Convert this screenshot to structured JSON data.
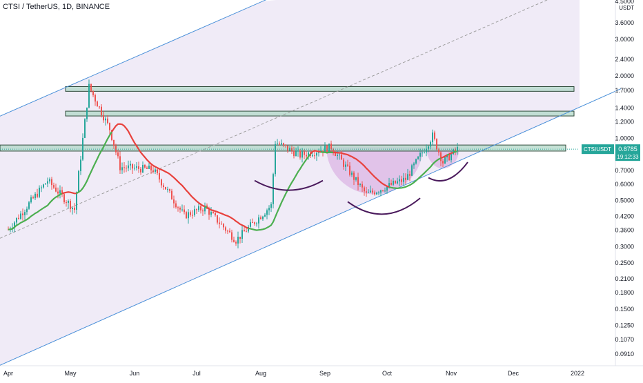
{
  "header": {
    "title": "CTSI / TetherUS, 1D, BINANCE"
  },
  "colors": {
    "up": "#26a69a",
    "down": "#ef5350",
    "ma": "#e8413c",
    "ma_green": "#4caf50",
    "channel": "#4a90d9",
    "channel_fill": "#ede7f6",
    "zone_fill": "#b2d8c8",
    "zone_stroke": "#2e4a3a",
    "cup_fill": "#ce93d8",
    "arc": "#4a1a5c",
    "tag_bg": "#26a69a",
    "axis_text": "#131722"
  },
  "price_tag": {
    "symbol": "CTSIUSDT",
    "price": "0.8785",
    "countdown": "19:12:33"
  },
  "chart_data": {
    "type": "candlestick",
    "title": "CTSI / TetherUS, 1D, BINANCE",
    "y_scale": "log",
    "ylim": [
      0.08,
      4.5
    ],
    "y_unit": "USDT",
    "y_ticks": [
      "4.5000",
      "3.6000",
      "3.0000",
      "2.4000",
      "2.0000",
      "1.7000",
      "1.4000",
      "1.2000",
      "1.0000",
      "0.8785",
      "0.7000",
      "0.6000",
      "0.5000",
      "0.4200",
      "0.3600",
      "0.3000",
      "0.2500",
      "0.2100",
      "0.1800",
      "0.1500",
      "0.1250",
      "0.1070",
      "0.0910"
    ],
    "x_labels": [
      "Apr",
      "May",
      "Jun",
      "Jul",
      "Aug",
      "Sep",
      "Oct",
      "Nov",
      "Dec",
      "2022"
    ],
    "last_price": 0.8785,
    "horizontal_zones": [
      {
        "low": 1.67,
        "high": 1.76
      },
      {
        "low": 1.27,
        "high": 1.34
      },
      {
        "low": 0.86,
        "high": 0.92
      }
    ],
    "trend_channel": {
      "lower": [
        {
          "date": "2021-04-01",
          "price": 0.083
        },
        {
          "date": "2022-01-15",
          "price": 1.6
        }
      ],
      "upper": [
        {
          "date": "2021-04-01",
          "price": 1.32
        },
        {
          "date": "2021-08-01",
          "price": 4.5
        }
      ],
      "middle_dashed": [
        {
          "date": "2021-04-01",
          "price": 0.34
        },
        {
          "date": "2021-12-15",
          "price": 4.5
        }
      ]
    },
    "key_points": [
      {
        "date": "2021-04-01",
        "price": 0.36
      },
      {
        "date": "2021-04-20",
        "price": 0.62
      },
      {
        "date": "2021-05-03",
        "price": 0.45
      },
      {
        "date": "2021-05-10",
        "price": 1.76
      },
      {
        "date": "2021-05-20",
        "price": 1.1
      },
      {
        "date": "2021-05-25",
        "price": 0.72
      },
      {
        "date": "2021-06-10",
        "price": 0.7
      },
      {
        "date": "2021-06-25",
        "price": 0.42
      },
      {
        "date": "2021-07-05",
        "price": 0.46
      },
      {
        "date": "2021-07-20",
        "price": 0.32
      },
      {
        "date": "2021-08-06",
        "price": 0.47
      },
      {
        "date": "2021-08-08",
        "price": 0.95
      },
      {
        "date": "2021-08-20",
        "price": 0.82
      },
      {
        "date": "2021-09-04",
        "price": 0.9
      },
      {
        "date": "2021-09-21",
        "price": 0.53
      },
      {
        "date": "2021-10-10",
        "price": 0.63
      },
      {
        "date": "2021-10-23",
        "price": 1.02
      },
      {
        "date": "2021-10-28",
        "price": 0.76
      },
      {
        "date": "2021-11-04",
        "price": 0.8785
      }
    ]
  }
}
